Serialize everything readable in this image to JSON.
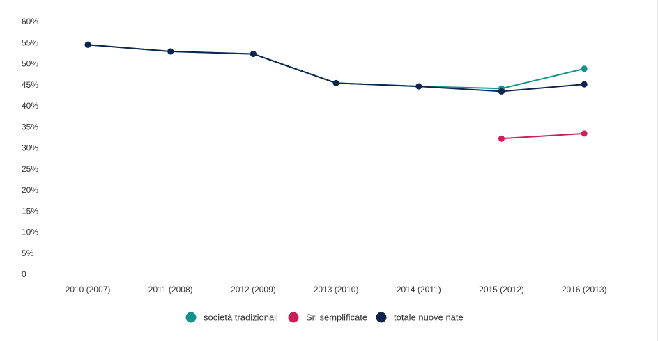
{
  "chart_data": {
    "type": "line",
    "categories": [
      "2010 (2007)",
      "2011 (2008)",
      "2012 (2009)",
      "2013 (2010)",
      "2014 (2011)",
      "2015 (2012)",
      "2016 (2013)"
    ],
    "yticks": [
      "0",
      "5%",
      "10%",
      "15%",
      "20%",
      "25%",
      "30%",
      "35%",
      "40%",
      "45%",
      "50%",
      "55%",
      "60%"
    ],
    "ylim": [
      0,
      60
    ],
    "y_unit": "%",
    "grid": false,
    "legend_position": "bottom-center",
    "series": [
      {
        "name": "società tradizionali",
        "color": "#13918f",
        "values": [
          54.5,
          52.9,
          52.3,
          45.4,
          44.6,
          44.1,
          48.8
        ]
      },
      {
        "name": "Srl semplificate",
        "color": "#c9205a",
        "values": [
          null,
          null,
          null,
          null,
          null,
          32.2,
          33.4
        ]
      },
      {
        "name": "totale nuove nate",
        "color": "#0d2350",
        "values": [
          54.5,
          52.9,
          52.3,
          45.4,
          44.6,
          43.4,
          45.1
        ]
      }
    ]
  }
}
